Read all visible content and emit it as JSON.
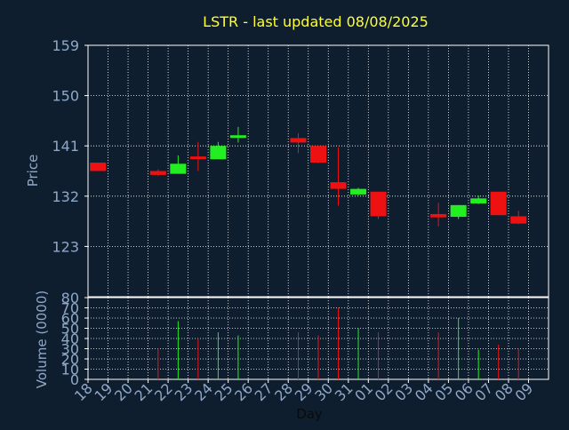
{
  "title": "LSTR - last updated 08/08/2025",
  "colors": {
    "background": "#0f1e2e",
    "title": "#ffff33",
    "axis_text": "#8fa8c8",
    "xlabel_text": "#0a0a0a",
    "up": "#22ee22",
    "down": "#ee1111",
    "grid": "#ffffff",
    "frame": "#ffffff"
  },
  "chart_data": [
    {
      "type": "candlestick",
      "ylabel": "Price",
      "ylim": [
        114,
        159
      ],
      "yticks": [
        123,
        132,
        141,
        150,
        159
      ],
      "grid": true,
      "categories": [
        "18",
        "19",
        "20",
        "21",
        "22",
        "23",
        "24",
        "25",
        "26",
        "27",
        "28",
        "29",
        "30",
        "31",
        "01",
        "02",
        "03",
        "04",
        "05",
        "06",
        "07",
        "08",
        "09"
      ],
      "candles": [
        {
          "day": "18",
          "open": 138.0,
          "high": 138.0,
          "low": 136.5,
          "close": 136.5,
          "dir": "down"
        },
        {
          "day": "21",
          "open": 136.5,
          "high": 136.8,
          "low": 135.6,
          "close": 135.8,
          "dir": "down"
        },
        {
          "day": "22",
          "open": 136.0,
          "high": 139.3,
          "low": 136.0,
          "close": 137.8,
          "dir": "up"
        },
        {
          "day": "23",
          "open": 139.1,
          "high": 141.7,
          "low": 136.5,
          "close": 138.8,
          "dir": "down"
        },
        {
          "day": "24",
          "open": 138.6,
          "high": 141.7,
          "low": 138.6,
          "close": 141.0,
          "dir": "up"
        },
        {
          "day": "25",
          "open": 142.5,
          "high": 144.4,
          "low": 141.6,
          "close": 142.9,
          "dir": "up"
        },
        {
          "day": "28",
          "open": 142.4,
          "high": 143.3,
          "low": 139.7,
          "close": 141.6,
          "dir": "down"
        },
        {
          "day": "29",
          "open": 141.0,
          "high": 141.0,
          "low": 137.9,
          "close": 138.0,
          "dir": "down"
        },
        {
          "day": "30",
          "open": 134.5,
          "high": 140.7,
          "low": 130.3,
          "close": 133.3,
          "dir": "down"
        },
        {
          "day": "31",
          "open": 132.3,
          "high": 133.5,
          "low": 132.1,
          "close": 133.3,
          "dir": "up"
        },
        {
          "day": "01",
          "open": 132.8,
          "high": 132.8,
          "low": 127.9,
          "close": 128.4,
          "dir": "down"
        },
        {
          "day": "04",
          "open": 128.8,
          "high": 130.8,
          "low": 126.6,
          "close": 128.2,
          "dir": "down"
        },
        {
          "day": "05",
          "open": 128.3,
          "high": 130.4,
          "low": 127.9,
          "close": 130.4,
          "dir": "up"
        },
        {
          "day": "06",
          "open": 130.7,
          "high": 132.1,
          "low": 130.6,
          "close": 131.6,
          "dir": "up"
        },
        {
          "day": "07",
          "open": 132.8,
          "high": 132.8,
          "low": 128.6,
          "close": 128.6,
          "dir": "down"
        },
        {
          "day": "08",
          "open": 128.4,
          "high": 129.4,
          "low": 127.0,
          "close": 127.1,
          "dir": "down"
        }
      ]
    },
    {
      "type": "bar",
      "ylabel": "Volume (0000)",
      "xlabel": "Day",
      "ylim": [
        0,
        80
      ],
      "yticks": [
        0,
        10,
        20,
        30,
        40,
        50,
        60,
        70,
        80
      ],
      "grid": true,
      "categories": [
        "18",
        "19",
        "20",
        "21",
        "22",
        "23",
        "24",
        "25",
        "26",
        "27",
        "28",
        "29",
        "30",
        "31",
        "01",
        "02",
        "03",
        "04",
        "05",
        "06",
        "07",
        "08",
        "09"
      ],
      "bars": [
        {
          "day": "21",
          "value": 30,
          "dir": "down"
        },
        {
          "day": "22",
          "value": 57,
          "dir": "up"
        },
        {
          "day": "23",
          "value": 40,
          "dir": "down"
        },
        {
          "day": "24",
          "value": 46,
          "dir": "up"
        },
        {
          "day": "25",
          "value": 43,
          "dir": "up"
        },
        {
          "day": "28",
          "value": 46,
          "dir": "down"
        },
        {
          "day": "29",
          "value": 43,
          "dir": "down"
        },
        {
          "day": "30",
          "value": 70,
          "dir": "down"
        },
        {
          "day": "31",
          "value": 50,
          "dir": "up"
        },
        {
          "day": "01",
          "value": 46,
          "dir": "down"
        },
        {
          "day": "04",
          "value": 46,
          "dir": "down"
        },
        {
          "day": "05",
          "value": 60,
          "dir": "up"
        },
        {
          "day": "06",
          "value": 29,
          "dir": "up"
        },
        {
          "day": "07",
          "value": 34,
          "dir": "down"
        },
        {
          "day": "08",
          "value": 30,
          "dir": "down"
        }
      ]
    }
  ]
}
